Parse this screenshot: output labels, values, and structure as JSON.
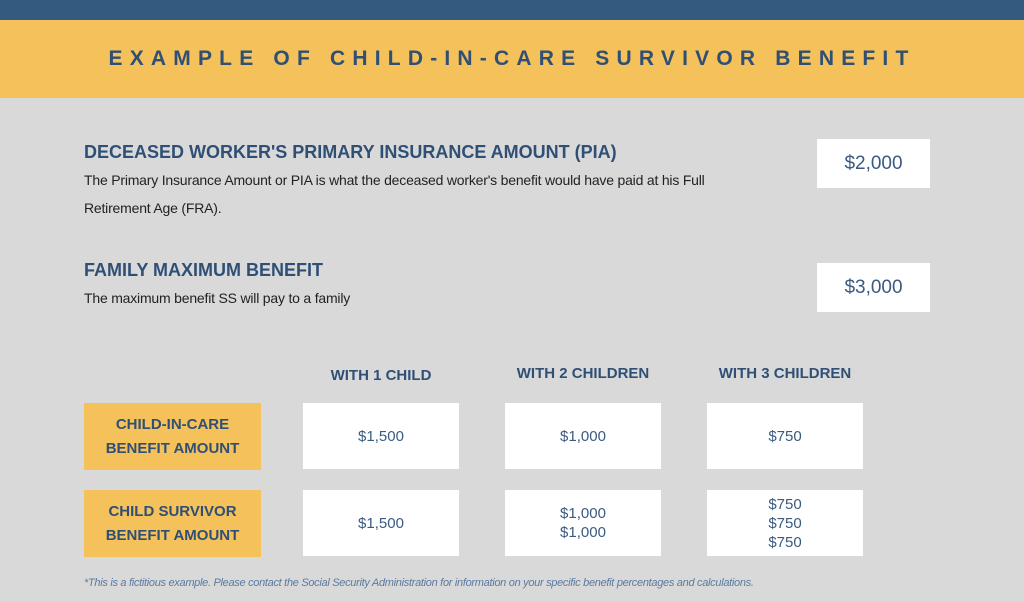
{
  "header": {
    "title": "EXAMPLE OF CHILD-IN-CARE SURVIVOR BENEFIT"
  },
  "sections": [
    {
      "title": "DECEASED WORKER'S PRIMARY INSURANCE AMOUNT (PIA)",
      "description": [
        "The Primary Insurance Amount or PIA is what the deceased worker's benefit would have paid at his Full",
        "Retirement Age (FRA)."
      ],
      "amount": "$2,000"
    },
    {
      "title": "FAMILY MAXIMUM BENEFIT",
      "description": [
        "The maximum benefit SS will pay to a family"
      ],
      "amount": "$3,000"
    }
  ],
  "table": {
    "columns": [
      "WITH 1 CHILD",
      "WITH 2 CHILDREN",
      "WITH 3 CHILDREN"
    ],
    "rows": [
      {
        "label": [
          "CHILD-IN-CARE",
          "BENEFIT AMOUNT"
        ],
        "cells": [
          [
            "$1,500"
          ],
          [
            "$1,000"
          ],
          [
            "$750"
          ]
        ]
      },
      {
        "label": [
          "CHILD SURVIVOR",
          "BENEFIT AMOUNT"
        ],
        "cells": [
          [
            "$1,500"
          ],
          [
            "$1,000",
            "$1,000"
          ],
          [
            "$750",
            "$750",
            "$750"
          ]
        ]
      }
    ]
  },
  "footnote": "*This is a fictitious example. Please contact the Social Security Administration for information on your specific benefit percentages and calculations."
}
